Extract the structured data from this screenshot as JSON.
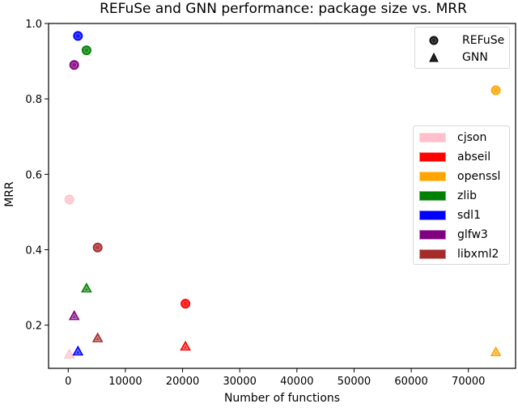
{
  "chart_data": {
    "type": "scatter",
    "title": "REFuSe and GNN performance: package size vs. MRR",
    "xlabel": "Number of functions",
    "ylabel": "MRR",
    "xlim": [
      -3440,
      78250
    ],
    "ylim": [
      0.0855,
      1.0
    ],
    "xticks": [
      0,
      10000,
      20000,
      30000,
      40000,
      50000,
      60000,
      70000
    ],
    "xtick_labels": [
      "0",
      "10000",
      "20000",
      "30000",
      "40000",
      "50000",
      "60000",
      "70000"
    ],
    "yticks": [
      0.2,
      0.4,
      0.6,
      0.8,
      1.0
    ],
    "ytick_labels": [
      "0.2",
      "0.4",
      "0.6",
      "0.8",
      "1.0"
    ],
    "grid": false,
    "marker_legend": {
      "position": "upper right",
      "entries": [
        {
          "label": "REFuSe",
          "marker": "circle"
        },
        {
          "label": "GNN",
          "marker": "triangle"
        }
      ]
    },
    "package_legend": {
      "position": "center right",
      "entries": [
        {
          "label": "cjson",
          "color": "#ffc0cb"
        },
        {
          "label": "abseil",
          "color": "#ff0000"
        },
        {
          "label": "openssl",
          "color": "#ffa500"
        },
        {
          "label": "zlib",
          "color": "#008000"
        },
        {
          "label": "sdl1",
          "color": "#0000ff"
        },
        {
          "label": "glfw3",
          "color": "#800080"
        },
        {
          "label": "libxml2",
          "color": "#a52a2a"
        }
      ]
    },
    "categories": [
      "cjson",
      "abseil",
      "openssl",
      "zlib",
      "sdl1",
      "glfw3",
      "libxml2"
    ],
    "x": [
      200,
      20500,
      74800,
      3200,
      1700,
      1050,
      5150
    ],
    "series": [
      {
        "name": "REFuSe",
        "marker": "circle",
        "values": [
          0.533,
          0.257,
          0.823,
          0.929,
          0.967,
          0.89,
          0.406
        ]
      },
      {
        "name": "GNN",
        "marker": "triangle",
        "values": [
          0.123,
          0.144,
          0.129,
          0.298,
          0.131,
          0.225,
          0.166
        ]
      }
    ],
    "colors": [
      "#ffc0cb",
      "#ff0000",
      "#ffa500",
      "#008000",
      "#0000ff",
      "#800080",
      "#a52a2a"
    ]
  }
}
